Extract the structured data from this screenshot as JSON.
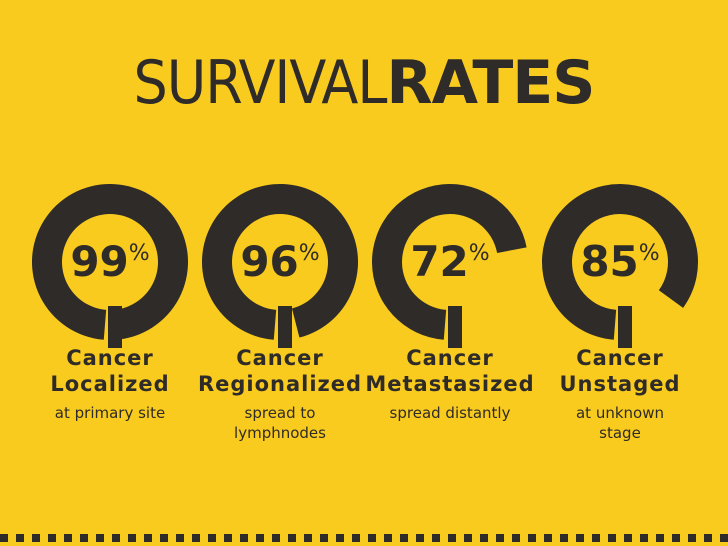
{
  "chart_data": {
    "type": "gauge",
    "title": [
      "SURVIVAL",
      "RATES"
    ],
    "categories": [
      "Cancer\nLocalized",
      "Cancer\nRegionalized",
      "Cancer\nMetastasized",
      "Cancer\nUnstaged"
    ],
    "descriptions": [
      "at primary site",
      "spread to\nlymphnodes",
      "spread distantly",
      "at unknown\nstage"
    ],
    "values": [
      99,
      96,
      72,
      85
    ],
    "value_labels": [
      "99%",
      "96%",
      "72%",
      "85%"
    ],
    "ylim": [
      0,
      100
    ],
    "color": "#2e2b28",
    "background": "#f9cb1f"
  }
}
